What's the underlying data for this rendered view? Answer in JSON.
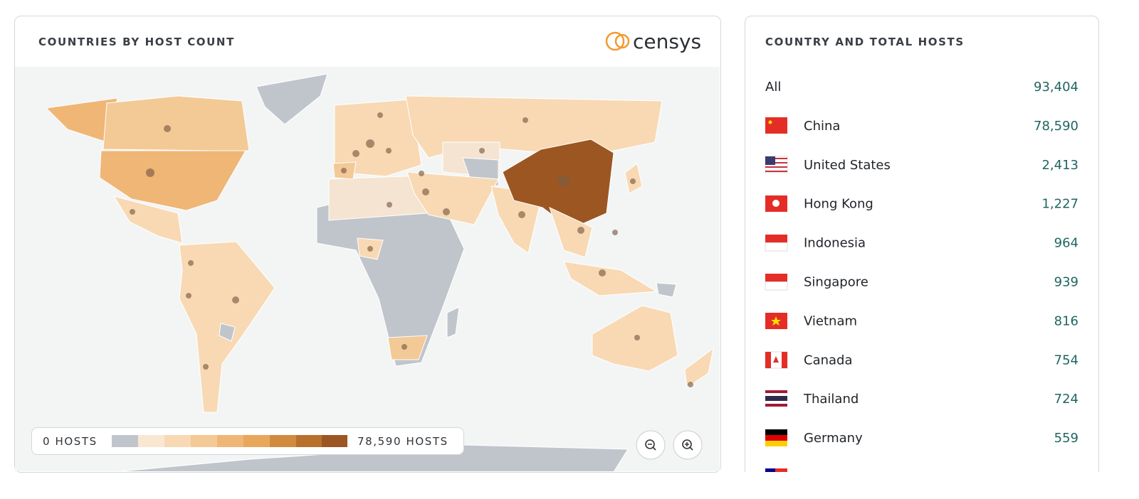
{
  "map_panel": {
    "title": "COUNTRIES BY HOST COUNT",
    "logo": "censys",
    "legend": {
      "min_label": "0 HOSTS",
      "max_label": "78,590 HOSTS"
    }
  },
  "table_panel": {
    "title": "COUNTRY AND TOTAL HOSTS",
    "rows": [
      [
        "All",
        "93,404"
      ],
      [
        "China",
        "78,590"
      ],
      [
        "United States",
        "2,413"
      ],
      [
        "Hong Kong",
        "1,227"
      ],
      [
        "Indonesia",
        "964"
      ],
      [
        "Singapore",
        "939"
      ],
      [
        "Vietnam",
        "816"
      ],
      [
        "Canada",
        "754"
      ],
      [
        "Thailand",
        "724"
      ],
      [
        "Germany",
        "559"
      ]
    ]
  }
}
